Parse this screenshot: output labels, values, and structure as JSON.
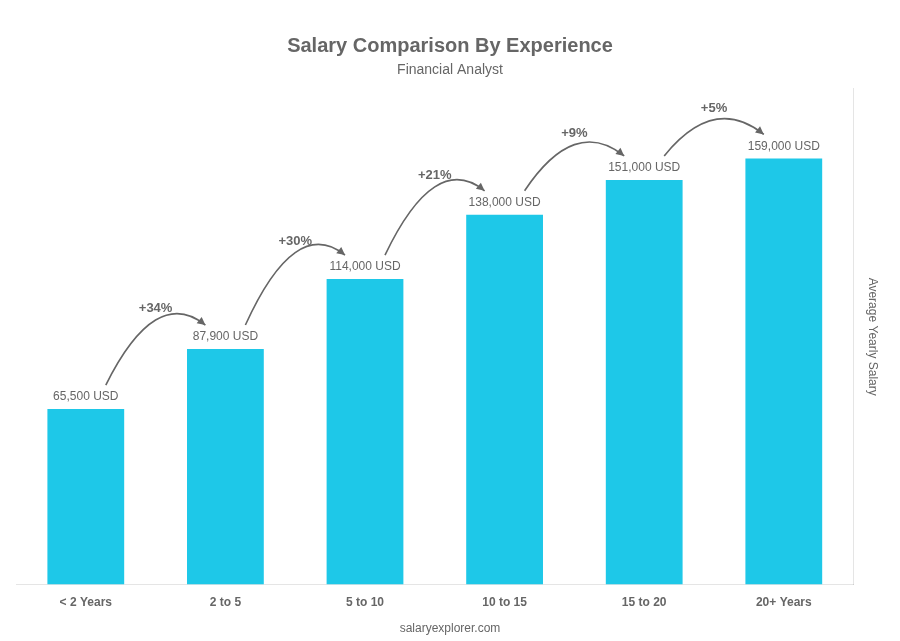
{
  "chart_data": {
    "type": "bar",
    "title": "Salary Comparison By Experience",
    "subtitle": "Financial Analyst",
    "ylabel": "Average Yearly Salary",
    "footer": "salaryexplorer.com",
    "categories": [
      "< 2 Years",
      "2 to 5",
      "5 to 10",
      "10 to 15",
      "15 to 20",
      "20+ Years"
    ],
    "values": [
      65500,
      87900,
      114000,
      138000,
      151000,
      159000
    ],
    "value_labels": [
      "65,500 USD",
      "87,900 USD",
      "114,000 USD",
      "138,000 USD",
      "151,000 USD",
      "159,000 USD"
    ],
    "data_labels": true,
    "annotations": [
      "+34%",
      "+30%",
      "+21%",
      "+9%",
      "+5%"
    ],
    "color": "#1ec8e8",
    "ylim": [
      0,
      185000
    ],
    "tick_labels": "x",
    "grid": false
  }
}
